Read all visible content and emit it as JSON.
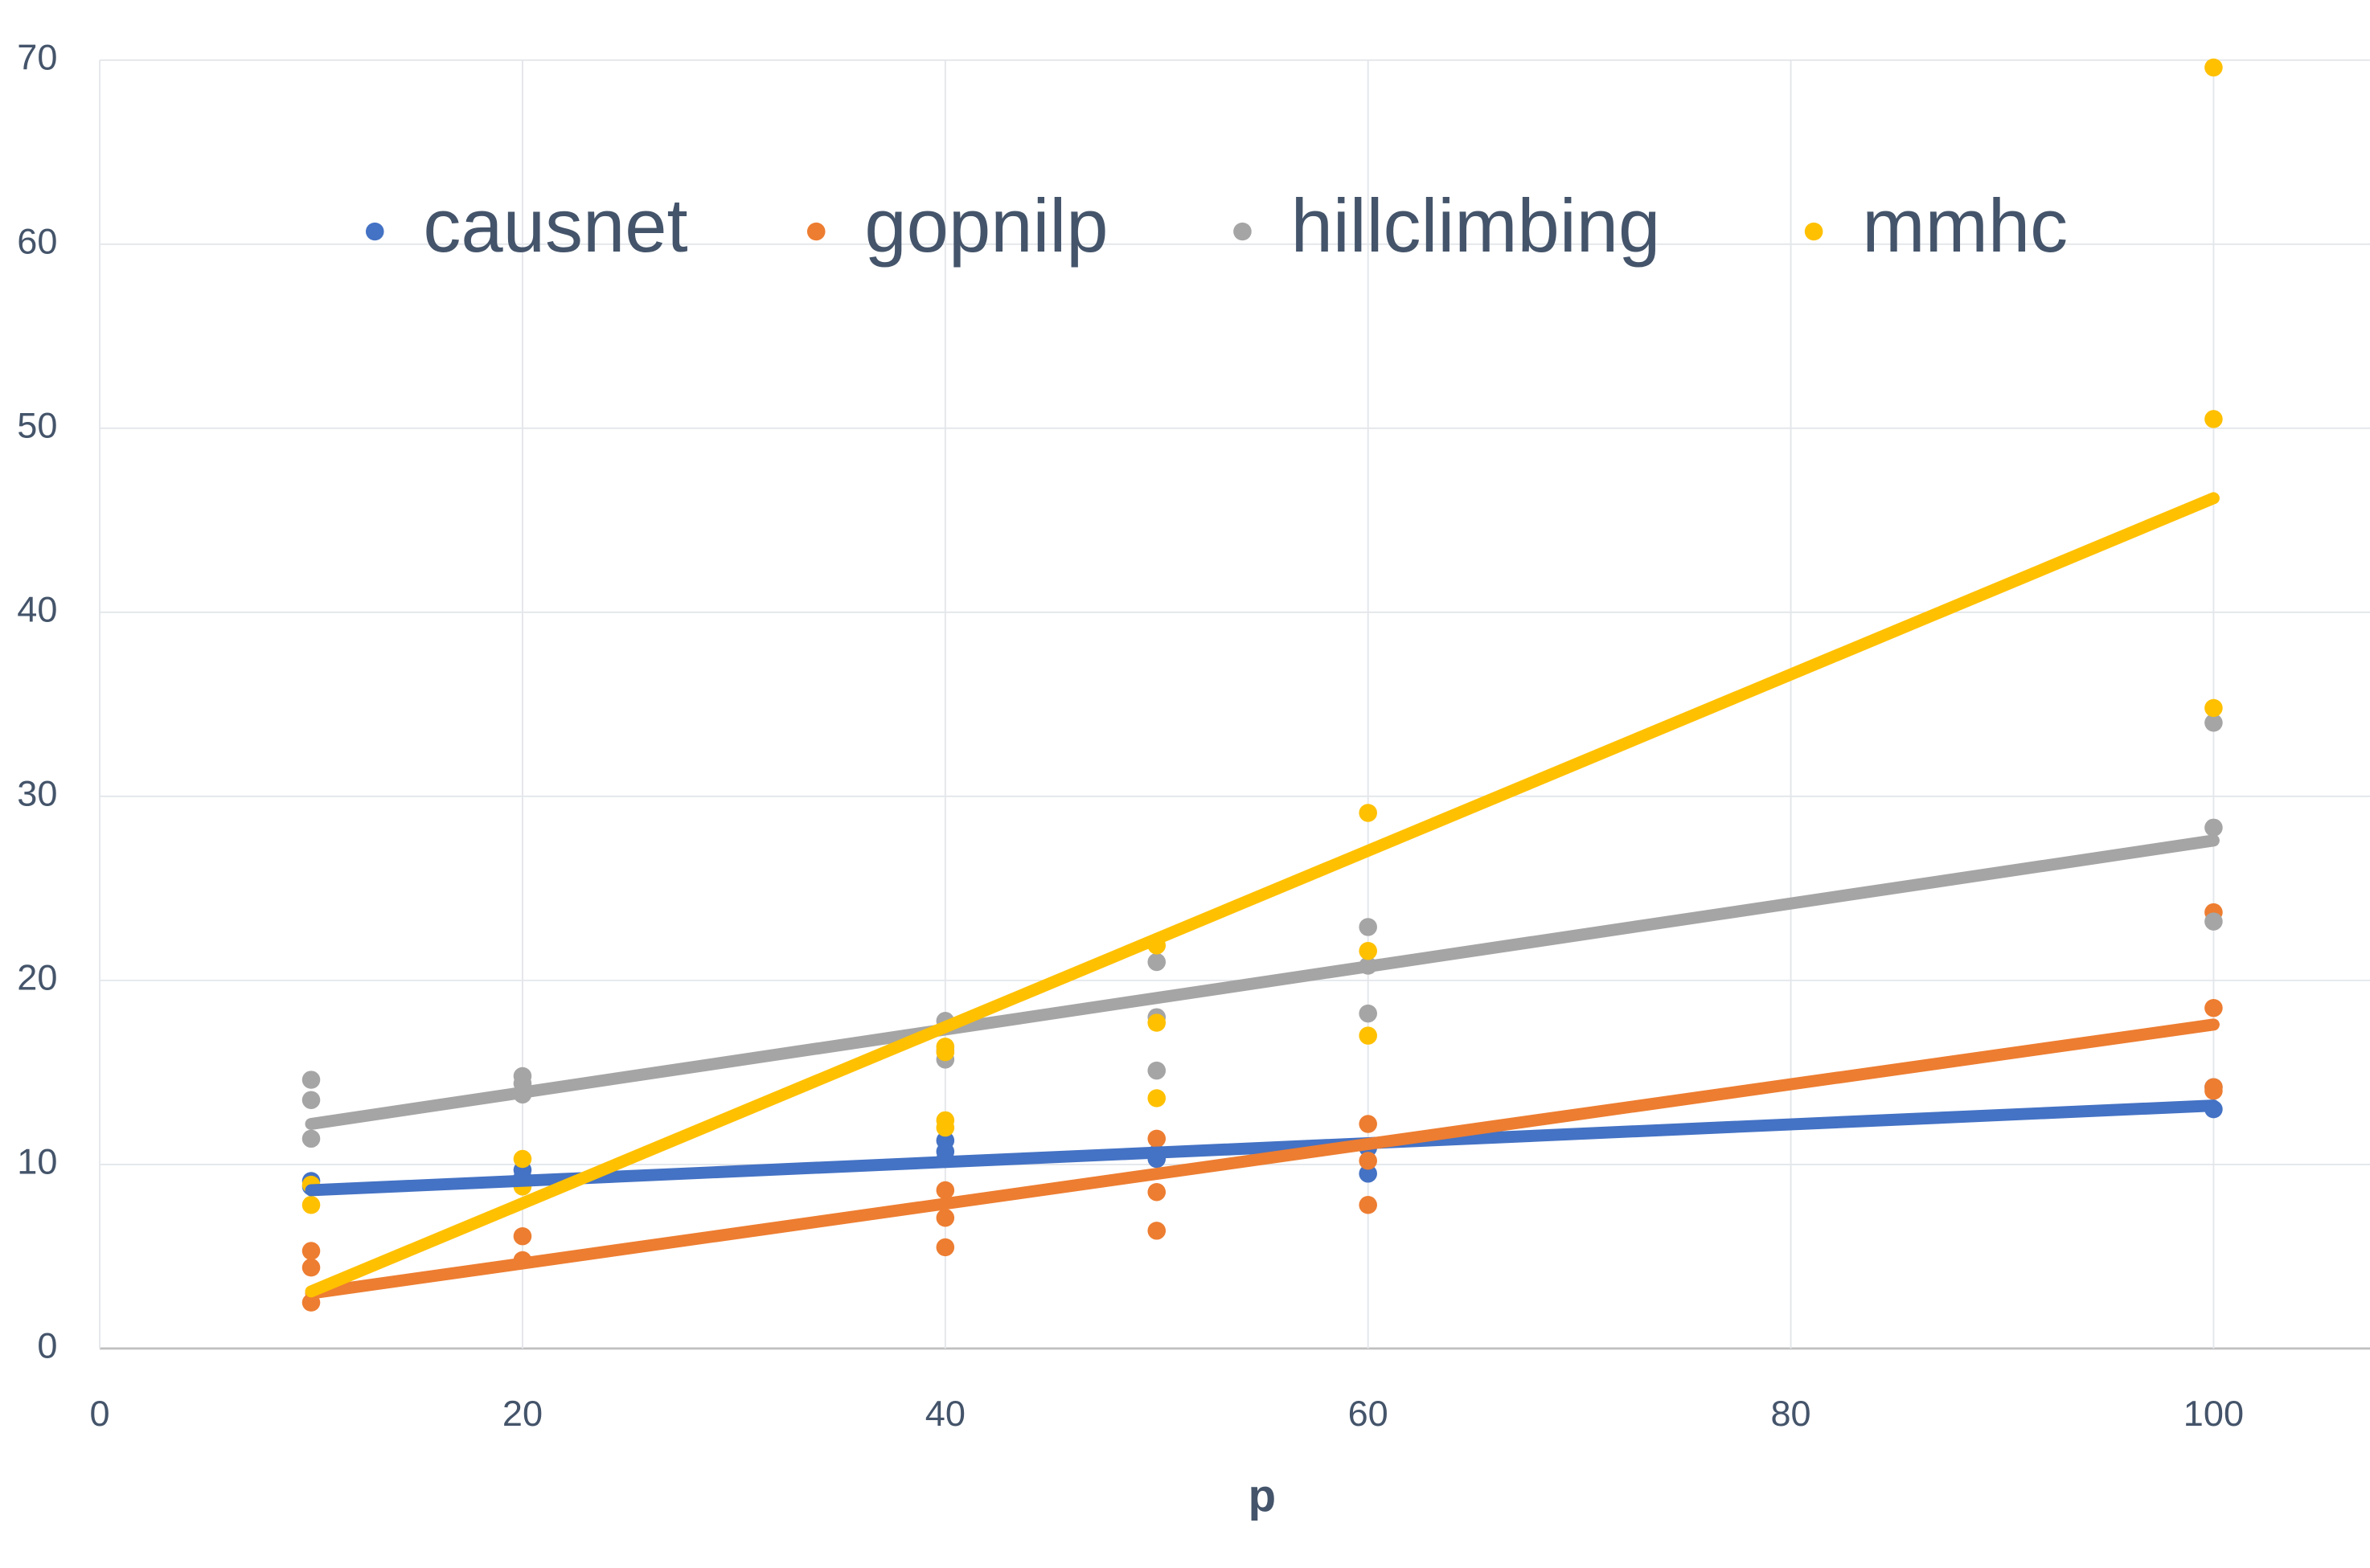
{
  "chart_data": {
    "type": "scatter",
    "x_label": "p",
    "xlim": [
      0,
      107.4
    ],
    "ylim": [
      0,
      70
    ],
    "xticks": [
      0,
      20,
      40,
      60,
      80,
      100
    ],
    "yticks": [
      0,
      10,
      20,
      30,
      40,
      50,
      60,
      70
    ],
    "grid": true,
    "legend": "top",
    "series": [
      {
        "name": "causnet",
        "color": "#4472c4",
        "x": [
          10,
          10,
          20,
          20,
          40,
          40,
          40,
          50,
          50,
          60,
          60,
          100,
          100
        ],
        "values": [
          9.1,
          8.8,
          9.7,
          9.3,
          11.3,
          10.7,
          10.3,
          10.3,
          10.6,
          9.5,
          10.9,
          13.0,
          14.2
        ],
        "trendline": {
          "x": [
            10,
            100
          ],
          "values": [
            8.6,
            13.2
          ]
        }
      },
      {
        "name": "gopnilp",
        "color": "#ed7d31",
        "x": [
          10,
          10,
          10,
          20,
          20,
          40,
          40,
          40,
          50,
          50,
          50,
          60,
          60,
          60,
          100,
          100,
          100,
          100
        ],
        "values": [
          5.3,
          4.4,
          2.5,
          6.1,
          4.8,
          8.6,
          7.1,
          5.5,
          11.4,
          8.5,
          6.4,
          12.2,
          10.2,
          7.8,
          23.7,
          18.5,
          14.2,
          14.0
        ],
        "trendline": {
          "x": [
            10,
            100
          ],
          "values": [
            3.0,
            17.6
          ]
        }
      },
      {
        "name": "hillclimbing",
        "color": "#a5a5a5",
        "x": [
          10,
          10,
          10,
          20,
          20,
          20,
          40,
          40,
          40,
          50,
          50,
          50,
          60,
          60,
          60,
          100,
          100,
          100
        ],
        "values": [
          14.6,
          13.5,
          11.4,
          14.8,
          14.4,
          13.8,
          17.8,
          15.7,
          16.2,
          21.0,
          18.0,
          15.1,
          22.9,
          20.8,
          18.2,
          34.0,
          28.3,
          23.2
        ],
        "trendline": {
          "x": [
            10,
            100
          ],
          "values": [
            12.2,
            27.6
          ]
        }
      },
      {
        "name": "mmhc",
        "color": "#ffc000",
        "x": [
          10,
          10,
          20,
          20,
          40,
          40,
          40,
          40,
          50,
          50,
          50,
          60,
          60,
          60,
          100,
          100,
          100
        ],
        "values": [
          7.8,
          8.9,
          10.3,
          8.8,
          16.4,
          16.1,
          12.4,
          12.0,
          21.9,
          17.7,
          13.6,
          29.1,
          21.6,
          17.0,
          69.6,
          50.5,
          34.8
        ],
        "trendline": {
          "x": [
            10,
            100
          ],
          "values": [
            3.1,
            46.2
          ]
        }
      }
    ]
  }
}
